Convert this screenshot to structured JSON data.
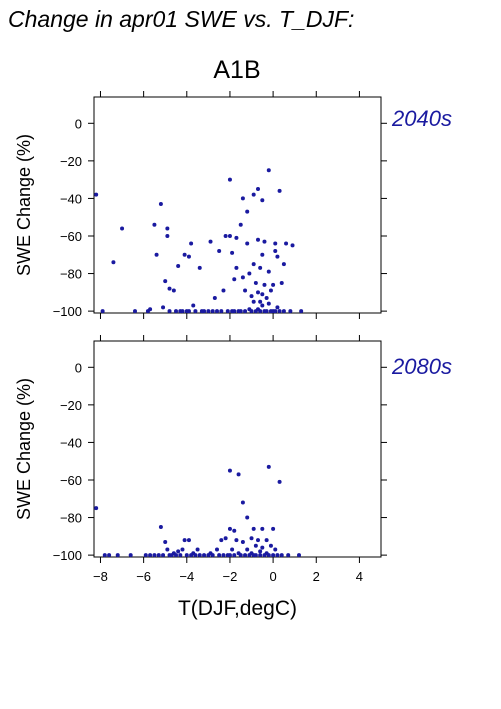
{
  "page": {
    "title": "Change in apr01 SWE vs. T_DJF:",
    "scenario": "A1B"
  },
  "colors": {
    "points": "#1a1aa0",
    "axis": "#000000",
    "label": "#1a1aa0"
  },
  "chart_data": [
    {
      "type": "scatter",
      "panel_label": "2040s",
      "ylabel": "SWE Change (%)",
      "xlabel": "",
      "xlim": [
        -8.3,
        5
      ],
      "ylim": [
        -101,
        14
      ],
      "xticks": [
        -8,
        -6,
        -4,
        -2,
        0,
        2,
        4
      ],
      "yticks": [
        0,
        -20,
        -40,
        -60,
        -80,
        -100
      ],
      "ytick_labels": [
        "0",
        "−20",
        "−40",
        "−60",
        "−80",
        "−100"
      ],
      "points": [
        [
          -8.2,
          -38
        ],
        [
          -7.9,
          -100
        ],
        [
          -7.4,
          -74
        ],
        [
          -7.0,
          -56
        ],
        [
          -6.4,
          -100
        ],
        [
          -5.8,
          -100
        ],
        [
          -5.7,
          -99
        ],
        [
          -5.5,
          -54
        ],
        [
          -5.4,
          -70
        ],
        [
          -5.2,
          -43
        ],
        [
          -5.1,
          -98
        ],
        [
          -5.0,
          -84
        ],
        [
          -4.9,
          -56
        ],
        [
          -4.9,
          -60
        ],
        [
          -4.8,
          -88
        ],
        [
          -4.8,
          -100
        ],
        [
          -4.6,
          -89
        ],
        [
          -4.5,
          -100
        ],
        [
          -4.4,
          -76
        ],
        [
          -4.3,
          -100
        ],
        [
          -4.2,
          -100
        ],
        [
          -4.1,
          -70
        ],
        [
          -4.0,
          -100
        ],
        [
          -3.9,
          -71
        ],
        [
          -3.9,
          -100
        ],
        [
          -3.8,
          -64
        ],
        [
          -3.7,
          -97
        ],
        [
          -3.6,
          -100
        ],
        [
          -3.4,
          -77
        ],
        [
          -3.3,
          -100
        ],
        [
          -3.2,
          -100
        ],
        [
          -3.0,
          -100
        ],
        [
          -2.9,
          -63
        ],
        [
          -2.8,
          -100
        ],
        [
          -2.7,
          -93
        ],
        [
          -2.6,
          -100
        ],
        [
          -2.5,
          -68
        ],
        [
          -2.4,
          -100
        ],
        [
          -2.3,
          -89
        ],
        [
          -2.2,
          -60
        ],
        [
          -2.1,
          -100
        ],
        [
          -2.0,
          -30
        ],
        [
          -2.0,
          -60
        ],
        [
          -1.9,
          -100
        ],
        [
          -1.9,
          -69
        ],
        [
          -1.8,
          -83
        ],
        [
          -1.8,
          -100
        ],
        [
          -1.7,
          -61
        ],
        [
          -1.7,
          -77
        ],
        [
          -1.6,
          -100
        ],
        [
          -1.5,
          -54
        ],
        [
          -1.5,
          -100
        ],
        [
          -1.4,
          -40
        ],
        [
          -1.4,
          -82
        ],
        [
          -1.3,
          -89
        ],
        [
          -1.3,
          -100
        ],
        [
          -1.2,
          -47
        ],
        [
          -1.2,
          -64
        ],
        [
          -1.1,
          -80
        ],
        [
          -1.1,
          -99
        ],
        [
          -1.0,
          -92
        ],
        [
          -1.0,
          -100
        ],
        [
          -0.9,
          -38
        ],
        [
          -0.9,
          -75
        ],
        [
          -0.9,
          -95
        ],
        [
          -0.8,
          -85
        ],
        [
          -0.8,
          -100
        ],
        [
          -0.7,
          -35
        ],
        [
          -0.7,
          -62
        ],
        [
          -0.7,
          -90
        ],
        [
          -0.7,
          -99
        ],
        [
          -0.6,
          -77
        ],
        [
          -0.6,
          -95
        ],
        [
          -0.6,
          -100
        ],
        [
          -0.5,
          -41
        ],
        [
          -0.5,
          -70
        ],
        [
          -0.5,
          -91
        ],
        [
          -0.5,
          -97
        ],
        [
          -0.4,
          -86
        ],
        [
          -0.4,
          -100
        ],
        [
          -0.4,
          -63
        ],
        [
          -0.3,
          -93
        ],
        [
          -0.3,
          -100
        ],
        [
          -0.2,
          -25
        ],
        [
          -0.2,
          -79
        ],
        [
          -0.2,
          -96
        ],
        [
          -0.1,
          -89
        ],
        [
          -0.1,
          -100
        ],
        [
          0.0,
          -86
        ],
        [
          0.0,
          -100
        ],
        [
          0.1,
          -64
        ],
        [
          0.1,
          -68
        ],
        [
          0.1,
          -100
        ],
        [
          0.2,
          -71
        ],
        [
          0.2,
          -98
        ],
        [
          0.3,
          -36
        ],
        [
          0.3,
          -100
        ],
        [
          0.4,
          -85
        ],
        [
          0.5,
          -75
        ],
        [
          0.5,
          -100
        ],
        [
          0.6,
          -64
        ],
        [
          0.8,
          -100
        ],
        [
          0.9,
          -65
        ],
        [
          1.3,
          -100
        ]
      ]
    },
    {
      "type": "scatter",
      "panel_label": "2080s",
      "ylabel": "SWE Change (%)",
      "xlabel": "T(DJF,degC)",
      "xlim": [
        -8.3,
        5
      ],
      "ylim": [
        -101,
        14
      ],
      "xticks": [
        -8,
        -6,
        -4,
        -2,
        0,
        2,
        4
      ],
      "xtick_labels": [
        "−8",
        "−6",
        "−4",
        "−2",
        "0",
        "2",
        "4"
      ],
      "yticks": [
        0,
        -20,
        -40,
        -60,
        -80,
        -100
      ],
      "ytick_labels": [
        "0",
        "−20",
        "−40",
        "−60",
        "−80",
        "−100"
      ],
      "points": [
        [
          -8.2,
          -75
        ],
        [
          -7.8,
          -100
        ],
        [
          -7.6,
          -100
        ],
        [
          -7.2,
          -100
        ],
        [
          -6.6,
          -100
        ],
        [
          -5.9,
          -100
        ],
        [
          -5.7,
          -100
        ],
        [
          -5.5,
          -100
        ],
        [
          -5.3,
          -100
        ],
        [
          -5.2,
          -85
        ],
        [
          -5.1,
          -100
        ],
        [
          -5.0,
          -93
        ],
        [
          -4.9,
          -97
        ],
        [
          -4.8,
          -100
        ],
        [
          -4.7,
          -100
        ],
        [
          -4.6,
          -99
        ],
        [
          -4.5,
          -100
        ],
        [
          -4.4,
          -98
        ],
        [
          -4.3,
          -100
        ],
        [
          -4.2,
          -97
        ],
        [
          -4.1,
          -92
        ],
        [
          -4.0,
          -100
        ],
        [
          -3.9,
          -92
        ],
        [
          -3.8,
          -100
        ],
        [
          -3.7,
          -99
        ],
        [
          -3.6,
          -100
        ],
        [
          -3.5,
          -97
        ],
        [
          -3.4,
          -100
        ],
        [
          -3.2,
          -100
        ],
        [
          -3.0,
          -100
        ],
        [
          -2.9,
          -99
        ],
        [
          -2.8,
          -100
        ],
        [
          -2.6,
          -97
        ],
        [
          -2.5,
          -100
        ],
        [
          -2.4,
          -92
        ],
        [
          -2.3,
          -100
        ],
        [
          -2.2,
          -91
        ],
        [
          -2.1,
          -100
        ],
        [
          -2.0,
          -55
        ],
        [
          -2.0,
          -86
        ],
        [
          -2.0,
          -100
        ],
        [
          -1.9,
          -97
        ],
        [
          -1.8,
          -87
        ],
        [
          -1.8,
          -100
        ],
        [
          -1.7,
          -92
        ],
        [
          -1.6,
          -57
        ],
        [
          -1.6,
          -99
        ],
        [
          -1.5,
          -100
        ],
        [
          -1.4,
          -72
        ],
        [
          -1.4,
          -93
        ],
        [
          -1.3,
          -100
        ],
        [
          -1.2,
          -80
        ],
        [
          -1.2,
          -97
        ],
        [
          -1.1,
          -100
        ],
        [
          -1.0,
          -91
        ],
        [
          -1.0,
          -99
        ],
        [
          -0.9,
          -86
        ],
        [
          -0.9,
          -100
        ],
        [
          -0.8,
          -95
        ],
        [
          -0.8,
          -100
        ],
        [
          -0.7,
          -92
        ],
        [
          -0.6,
          -98
        ],
        [
          -0.6,
          -100
        ],
        [
          -0.5,
          -86
        ],
        [
          -0.5,
          -96
        ],
        [
          -0.4,
          -100
        ],
        [
          -0.3,
          -92
        ],
        [
          -0.3,
          -99
        ],
        [
          -0.2,
          -53
        ],
        [
          -0.2,
          -100
        ],
        [
          -0.1,
          -95
        ],
        [
          0.0,
          -86
        ],
        [
          0.0,
          -100
        ],
        [
          0.1,
          -97
        ],
        [
          0.2,
          -100
        ],
        [
          0.3,
          -61
        ],
        [
          0.4,
          -100
        ],
        [
          0.7,
          -100
        ],
        [
          1.2,
          -100
        ]
      ]
    }
  ]
}
